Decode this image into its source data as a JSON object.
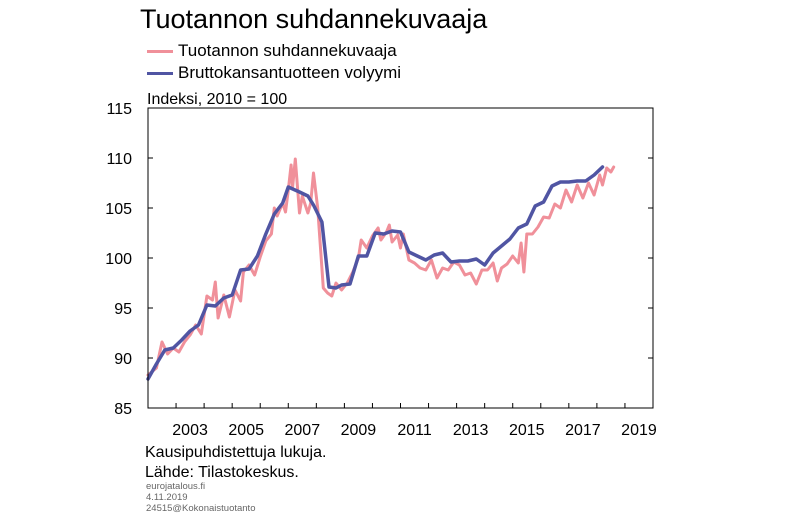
{
  "chart_data": {
    "type": "line",
    "title": "Tuotannon suhdannekuvaaja",
    "unit_label": "Indeksi, 2010 = 100",
    "ylim": [
      85,
      115
    ],
    "y_ticks": [
      "85",
      "90",
      "95",
      "100",
      "105",
      "110",
      "115"
    ],
    "xlim": [
      2002,
      2020
    ],
    "x_ticks": [
      "2003",
      "2005",
      "2007",
      "2009",
      "2011",
      "2013",
      "2015",
      "2017",
      "2019"
    ],
    "grid": false,
    "legend_position": "top-left",
    "footer_note": "Kausipuhdistettuja lukuja.",
    "source": "Lähde: Tilastokeskus.",
    "credits": [
      "eurojatalous.fi",
      "4.11.2019",
      "24515@Kokonaistuotanto"
    ],
    "series": [
      {
        "name": "Tuotannon suhdannekuvaaja",
        "color": "#f0909a",
        "points": [
          [
            2002.0,
            88.3
          ],
          [
            2002.3,
            89.0
          ],
          [
            2002.5,
            91.6
          ],
          [
            2002.7,
            90.4
          ],
          [
            2002.9,
            91.0
          ],
          [
            2003.1,
            90.6
          ],
          [
            2003.3,
            91.6
          ],
          [
            2003.5,
            92.3
          ],
          [
            2003.7,
            93.3
          ],
          [
            2003.9,
            92.4
          ],
          [
            2004.1,
            96.2
          ],
          [
            2004.3,
            95.8
          ],
          [
            2004.4,
            97.6
          ],
          [
            2004.5,
            94.0
          ],
          [
            2004.7,
            96.3
          ],
          [
            2004.9,
            94.1
          ],
          [
            2005.1,
            96.8
          ],
          [
            2005.3,
            95.7
          ],
          [
            2005.4,
            98.6
          ],
          [
            2005.6,
            99.3
          ],
          [
            2005.8,
            98.3
          ],
          [
            2006.0,
            100.1
          ],
          [
            2006.2,
            101.7
          ],
          [
            2006.4,
            102.4
          ],
          [
            2006.5,
            105.0
          ],
          [
            2006.6,
            104.2
          ],
          [
            2006.8,
            105.5
          ],
          [
            2006.9,
            104.6
          ],
          [
            2007.0,
            106.8
          ],
          [
            2007.1,
            109.3
          ],
          [
            2007.15,
            107.0
          ],
          [
            2007.25,
            109.9
          ],
          [
            2007.4,
            104.5
          ],
          [
            2007.5,
            106.2
          ],
          [
            2007.7,
            104.5
          ],
          [
            2007.8,
            105.5
          ],
          [
            2007.9,
            108.5
          ],
          [
            2008.05,
            105.0
          ],
          [
            2008.25,
            97.0
          ],
          [
            2008.4,
            96.5
          ],
          [
            2008.55,
            96.2
          ],
          [
            2008.7,
            97.5
          ],
          [
            2008.9,
            96.8
          ],
          [
            2009.1,
            97.5
          ],
          [
            2009.3,
            98.6
          ],
          [
            2009.5,
            100.0
          ],
          [
            2009.6,
            101.8
          ],
          [
            2009.8,
            101.0
          ],
          [
            2010.0,
            102.2
          ],
          [
            2010.2,
            103.0
          ],
          [
            2010.3,
            101.8
          ],
          [
            2010.5,
            102.6
          ],
          [
            2010.6,
            103.3
          ],
          [
            2010.7,
            101.6
          ],
          [
            2010.9,
            102.3
          ],
          [
            2011.0,
            101.0
          ],
          [
            2011.1,
            102.4
          ],
          [
            2011.3,
            99.8
          ],
          [
            2011.5,
            99.5
          ],
          [
            2011.7,
            99.0
          ],
          [
            2011.9,
            98.8
          ],
          [
            2012.1,
            99.8
          ],
          [
            2012.3,
            98.0
          ],
          [
            2012.5,
            99.0
          ],
          [
            2012.7,
            98.8
          ],
          [
            2012.9,
            99.6
          ],
          [
            2013.1,
            99.3
          ],
          [
            2013.3,
            98.3
          ],
          [
            2013.5,
            98.5
          ],
          [
            2013.7,
            97.4
          ],
          [
            2013.9,
            98.8
          ],
          [
            2014.1,
            98.8
          ],
          [
            2014.3,
            99.5
          ],
          [
            2014.45,
            97.7
          ],
          [
            2014.6,
            99.0
          ],
          [
            2014.8,
            99.4
          ],
          [
            2015.0,
            100.2
          ],
          [
            2015.2,
            99.5
          ],
          [
            2015.3,
            101.5
          ],
          [
            2015.4,
            98.6
          ],
          [
            2015.5,
            102.4
          ],
          [
            2015.7,
            102.4
          ],
          [
            2015.9,
            103.1
          ],
          [
            2016.1,
            104.1
          ],
          [
            2016.3,
            104.0
          ],
          [
            2016.5,
            105.4
          ],
          [
            2016.7,
            105.0
          ],
          [
            2016.9,
            106.8
          ],
          [
            2017.1,
            105.6
          ],
          [
            2017.3,
            107.3
          ],
          [
            2017.5,
            106.0
          ],
          [
            2017.7,
            107.5
          ],
          [
            2017.9,
            106.3
          ],
          [
            2018.1,
            108.3
          ],
          [
            2018.2,
            107.3
          ],
          [
            2018.35,
            109.0
          ],
          [
            2018.5,
            108.6
          ],
          [
            2018.6,
            109.1
          ]
        ]
      },
      {
        "name": "Bruttokansantuotteen volyymi",
        "color": "#5055a3",
        "points": [
          [
            2002.0,
            87.9
          ],
          [
            2002.3,
            89.4
          ],
          [
            2002.6,
            90.8
          ],
          [
            2002.9,
            91.0
          ],
          [
            2003.2,
            91.8
          ],
          [
            2003.5,
            92.7
          ],
          [
            2003.8,
            93.3
          ],
          [
            2004.1,
            95.3
          ],
          [
            2004.4,
            95.2
          ],
          [
            2004.7,
            96.0
          ],
          [
            2005.0,
            96.3
          ],
          [
            2005.3,
            98.8
          ],
          [
            2005.6,
            98.9
          ],
          [
            2005.9,
            100.2
          ],
          [
            2006.2,
            102.4
          ],
          [
            2006.5,
            104.4
          ],
          [
            2006.8,
            105.5
          ],
          [
            2007.0,
            107.1
          ],
          [
            2007.4,
            106.6
          ],
          [
            2007.7,
            106.2
          ],
          [
            2007.9,
            105.3
          ],
          [
            2008.2,
            103.6
          ],
          [
            2008.45,
            97.1
          ],
          [
            2008.7,
            97.0
          ],
          [
            2008.9,
            97.3
          ],
          [
            2009.2,
            97.4
          ],
          [
            2009.5,
            100.2
          ],
          [
            2009.8,
            100.2
          ],
          [
            2010.1,
            102.5
          ],
          [
            2010.4,
            102.4
          ],
          [
            2010.7,
            102.7
          ],
          [
            2011.0,
            102.6
          ],
          [
            2011.3,
            100.6
          ],
          [
            2011.6,
            100.2
          ],
          [
            2011.9,
            99.8
          ],
          [
            2012.2,
            100.3
          ],
          [
            2012.5,
            100.5
          ],
          [
            2012.8,
            99.6
          ],
          [
            2013.1,
            99.7
          ],
          [
            2013.4,
            99.7
          ],
          [
            2013.7,
            99.9
          ],
          [
            2014.0,
            99.3
          ],
          [
            2014.3,
            100.5
          ],
          [
            2014.6,
            101.2
          ],
          [
            2014.9,
            101.9
          ],
          [
            2015.2,
            103.0
          ],
          [
            2015.5,
            103.4
          ],
          [
            2015.8,
            105.2
          ],
          [
            2016.1,
            105.6
          ],
          [
            2016.4,
            107.2
          ],
          [
            2016.7,
            107.6
          ],
          [
            2017.0,
            107.6
          ],
          [
            2017.3,
            107.7
          ],
          [
            2017.6,
            107.7
          ],
          [
            2017.9,
            108.3
          ],
          [
            2018.2,
            109.1
          ]
        ]
      }
    ]
  }
}
